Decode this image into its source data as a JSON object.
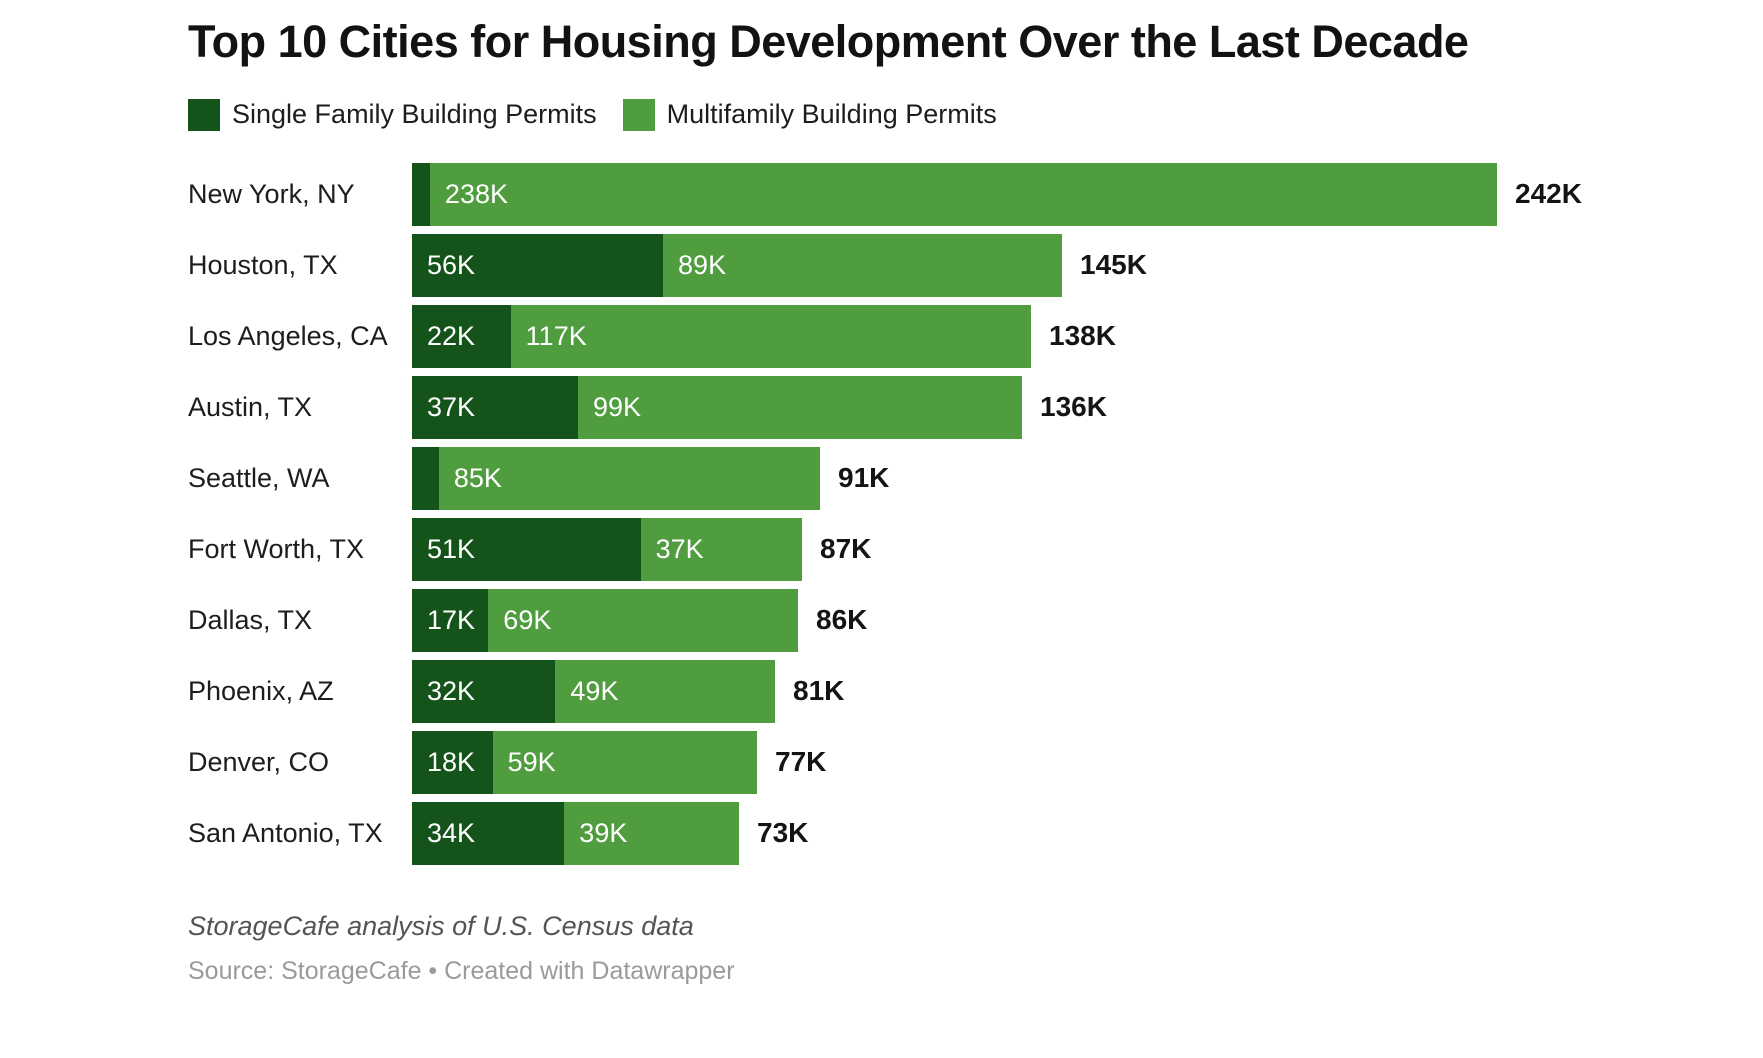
{
  "footer": {
    "notes": "StorageCafe analysis of U.S. Census data",
    "source": "Source: StorageCafe • Created with Datawrapper"
  },
  "chart_data": {
    "type": "bar",
    "orientation": "horizontal",
    "stacked": true,
    "grid": false,
    "legend_position": "top",
    "title": "Top 10 Cities for Housing Development Over the Last Decade",
    "xlabel": "",
    "ylabel": "",
    "unit": "thousands of building permits",
    "xmax": 242,
    "categories": [
      "New York, NY",
      "Houston, TX",
      "Los Angeles, CA",
      "Austin, TX",
      "Seattle, WA",
      "Fort Worth, TX",
      "Dallas, TX",
      "Phoenix, AZ",
      "Denver, CO",
      "San Antonio, TX"
    ],
    "series": [
      {
        "name": "Single Family Building Permits",
        "color": "#14531a",
        "values": [
          4,
          56,
          22,
          37,
          6,
          51,
          17,
          32,
          18,
          34
        ]
      },
      {
        "name": "Multifamily Building Permits",
        "color": "#4f9d3f",
        "values": [
          238,
          89,
          117,
          99,
          85,
          37,
          69,
          49,
          59,
          39
        ]
      }
    ],
    "totals": [
      242,
      145,
      138,
      136,
      91,
      87,
      86,
      81,
      77,
      73
    ],
    "segment_labels": {
      "single_family": [
        "",
        "56K",
        "22K",
        "37K",
        "",
        "51K",
        "17K",
        "32K",
        "18K",
        "34K"
      ],
      "multifamily": [
        "238K",
        "89K",
        "117K",
        "99K",
        "85K",
        "37K",
        "69K",
        "49K",
        "59K",
        "39K"
      ]
    },
    "total_labels": [
      "242K",
      "145K",
      "138K",
      "136K",
      "91K",
      "87K",
      "86K",
      "81K",
      "77K",
      "73K"
    ]
  }
}
